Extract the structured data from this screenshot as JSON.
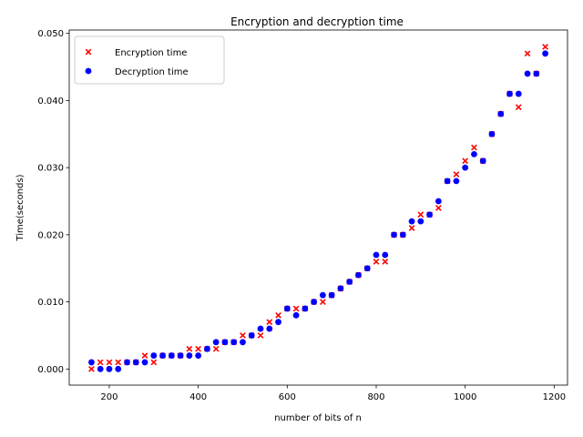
{
  "chart_data": {
    "type": "scatter",
    "title": "Encryption and decryption time",
    "xlabel": "number of bits of n",
    "ylabel": "Time(seconds)",
    "xlim": [
      110,
      1230
    ],
    "ylim": [
      -0.0024,
      0.0505
    ],
    "xticks": [
      200,
      400,
      600,
      800,
      1000,
      1200
    ],
    "xtick_labels": [
      "200",
      "400",
      "600",
      "800",
      "1000",
      "1200"
    ],
    "yticks": [
      0.0,
      0.01,
      0.02,
      0.03,
      0.04,
      0.05
    ],
    "ytick_labels": [
      "0.000",
      "0.010",
      "0.020",
      "0.030",
      "0.040",
      "0.050"
    ],
    "grid": false,
    "legend_position": "upper left",
    "x": [
      160,
      180,
      200,
      220,
      240,
      260,
      280,
      300,
      320,
      340,
      360,
      380,
      400,
      420,
      440,
      460,
      480,
      500,
      520,
      540,
      560,
      580,
      600,
      620,
      640,
      660,
      680,
      700,
      720,
      740,
      760,
      780,
      800,
      820,
      840,
      860,
      880,
      900,
      920,
      940,
      960,
      980,
      1000,
      1020,
      1040,
      1060,
      1080,
      1100,
      1120,
      1140,
      1160,
      1180
    ],
    "series": [
      {
        "name": "Encryption time",
        "color": "#ff0000",
        "marker": "x",
        "values": [
          0.0,
          0.001,
          0.001,
          0.001,
          0.001,
          0.001,
          0.002,
          0.001,
          0.002,
          0.002,
          0.002,
          0.003,
          0.003,
          0.003,
          0.003,
          0.004,
          0.004,
          0.005,
          0.005,
          0.005,
          0.007,
          0.008,
          0.009,
          0.009,
          0.009,
          0.01,
          0.01,
          0.011,
          0.012,
          0.013,
          0.014,
          0.015,
          0.016,
          0.016,
          0.02,
          0.02,
          0.021,
          0.023,
          0.023,
          0.024,
          0.028,
          0.029,
          0.031,
          0.033,
          0.031,
          0.035,
          0.038,
          0.041,
          0.039,
          0.047,
          0.044,
          0.048
        ]
      },
      {
        "name": "Decryption time",
        "color": "#0000ff",
        "marker": "o",
        "values": [
          0.001,
          0.0,
          0.0,
          0.0,
          0.001,
          0.001,
          0.001,
          0.002,
          0.002,
          0.002,
          0.002,
          0.002,
          0.002,
          0.003,
          0.004,
          0.004,
          0.004,
          0.004,
          0.005,
          0.006,
          0.006,
          0.007,
          0.009,
          0.008,
          0.009,
          0.01,
          0.011,
          0.011,
          0.012,
          0.013,
          0.014,
          0.015,
          0.017,
          0.017,
          0.02,
          0.02,
          0.022,
          0.022,
          0.023,
          0.025,
          0.028,
          0.028,
          0.03,
          0.032,
          0.031,
          0.035,
          0.038,
          0.041,
          0.041,
          0.044,
          0.044,
          0.047
        ]
      }
    ]
  }
}
